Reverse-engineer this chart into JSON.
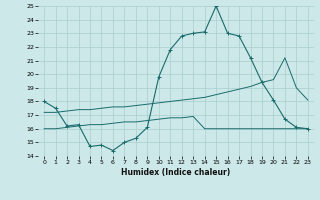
{
  "xlabel": "Humidex (Indice chaleur)",
  "background_color": "#cce8e8",
  "grid_color": "#aacece",
  "line_color": "#1a6b6b",
  "ylim": [
    14,
    25
  ],
  "xlim": [
    -0.5,
    23.5
  ],
  "yticks": [
    14,
    15,
    16,
    17,
    18,
    19,
    20,
    21,
    22,
    23,
    24,
    25
  ],
  "xticks": [
    0,
    1,
    2,
    3,
    4,
    5,
    6,
    7,
    8,
    9,
    10,
    11,
    12,
    13,
    14,
    15,
    16,
    17,
    18,
    19,
    20,
    21,
    22,
    23
  ],
  "series1_x": [
    0,
    1,
    2,
    3,
    4,
    5,
    6,
    7,
    8,
    9,
    10,
    11,
    12,
    13,
    14,
    15,
    16,
    17,
    18,
    19,
    20,
    21,
    22,
    23
  ],
  "series1_y": [
    18.0,
    17.5,
    16.2,
    16.3,
    14.7,
    14.8,
    14.4,
    15.0,
    15.3,
    16.1,
    19.8,
    21.8,
    22.8,
    23.0,
    23.1,
    25.0,
    23.0,
    22.8,
    21.2,
    19.4,
    18.1,
    16.7,
    16.1,
    16.0
  ],
  "series2_x": [
    0,
    1,
    2,
    3,
    4,
    5,
    6,
    7,
    8,
    9,
    10,
    11,
    12,
    13,
    14,
    15,
    16,
    17,
    18,
    19,
    20,
    21,
    22,
    23
  ],
  "series2_y": [
    17.2,
    17.2,
    17.3,
    17.4,
    17.4,
    17.5,
    17.6,
    17.6,
    17.7,
    17.8,
    17.9,
    18.0,
    18.1,
    18.2,
    18.3,
    18.5,
    18.7,
    18.9,
    19.1,
    19.4,
    19.6,
    21.2,
    19.0,
    18.1
  ],
  "series3_x": [
    0,
    1,
    2,
    3,
    4,
    5,
    6,
    7,
    8,
    9,
    10,
    11,
    12,
    13,
    14,
    15,
    16,
    17,
    18,
    19,
    20,
    21,
    22,
    23
  ],
  "series3_y": [
    16.0,
    16.0,
    16.1,
    16.2,
    16.3,
    16.3,
    16.4,
    16.5,
    16.5,
    16.6,
    16.7,
    16.8,
    16.8,
    16.9,
    16.0,
    16.0,
    16.0,
    16.0,
    16.0,
    16.0,
    16.0,
    16.0,
    16.0,
    16.0
  ]
}
